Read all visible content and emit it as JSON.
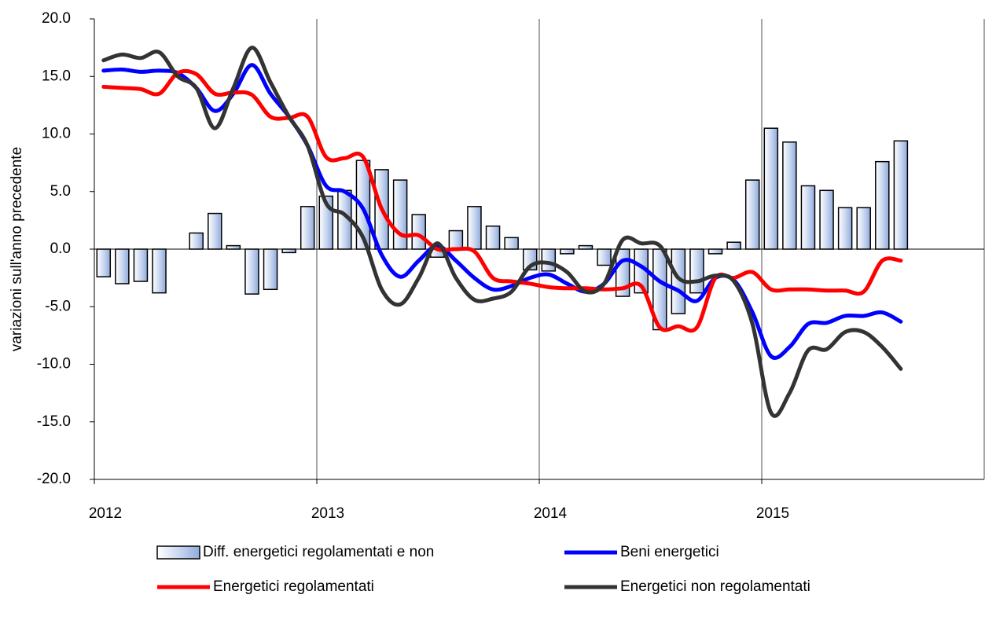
{
  "chart_data": {
    "type": "bar+line",
    "y_label": "variazioni sull'anno precedente",
    "categories": [
      "2012",
      null,
      null,
      null,
      null,
      null,
      null,
      null,
      null,
      null,
      null,
      null,
      "2013",
      null,
      null,
      null,
      null,
      null,
      null,
      null,
      null,
      null,
      null,
      null,
      "2014",
      null,
      null,
      null,
      null,
      null,
      null,
      null,
      null,
      null,
      null,
      null,
      "2015",
      null,
      null,
      null,
      null,
      null,
      null,
      null
    ],
    "ylim": [
      -20,
      20
    ],
    "yticks": [
      {
        "value": -20,
        "label": "-20.0"
      },
      {
        "value": -15,
        "label": "-15.0"
      },
      {
        "value": -10,
        "label": "-10.0"
      },
      {
        "value": -5,
        "label": "-5.0"
      },
      {
        "value": 0,
        "label": "0.0"
      },
      {
        "value": 5,
        "label": "5.0"
      },
      {
        "value": 10,
        "label": "10.0"
      },
      {
        "value": 15,
        "label": "15.0"
      },
      {
        "value": 20,
        "label": "20.0"
      }
    ],
    "grid": true,
    "legend": "bottom",
    "series": [
      {
        "name": "Diff. energetici regolamentati e non",
        "type": "bar",
        "color": "#8faadc",
        "values": [
          -2.4,
          -3.0,
          -2.8,
          -3.8,
          0,
          1.4,
          3.1,
          0.3,
          -3.9,
          -3.5,
          -0.3,
          3.7,
          4.6,
          5.1,
          7.7,
          6.9,
          6.0,
          3.0,
          -0.7,
          1.6,
          3.7,
          2.0,
          1.0,
          -1.8,
          -1.9,
          -0.4,
          0.3,
          -1.4,
          -4.1,
          -3.8,
          -7.0,
          -5.6,
          -3.8,
          -0.4,
          0.6,
          6.0,
          10.5,
          9.3,
          5.5,
          5.1,
          3.6,
          3.6,
          7.6,
          9.4
        ]
      },
      {
        "name": "Beni energetici",
        "type": "line",
        "color": "#0000ff",
        "values": [
          15.5,
          15.6,
          15.4,
          15.5,
          15.3,
          14.0,
          12.0,
          13.5,
          16.0,
          13.5,
          11.5,
          9.0,
          5.5,
          5.0,
          3.5,
          -0.5,
          -2.4,
          -1.0,
          0.3,
          -1.0,
          -2.5,
          -3.5,
          -3.2,
          -2.5,
          -2.2,
          -3.0,
          -3.7,
          -3.0,
          -1.0,
          -1.5,
          -2.8,
          -3.6,
          -4.5,
          -2.5,
          -2.7,
          -5.5,
          -9.3,
          -8.5,
          -6.5,
          -6.4,
          -5.8,
          -5.8,
          -5.5,
          -6.3
        ]
      },
      {
        "name": "Energetici regolamentati",
        "type": "line",
        "color": "#ff0000",
        "values": [
          14.1,
          14.0,
          13.9,
          13.5,
          15.3,
          15.2,
          13.5,
          13.6,
          13.4,
          11.5,
          11.4,
          11.5,
          8.0,
          7.9,
          8.0,
          3.5,
          1.3,
          1.2,
          0.0,
          0.0,
          -0.2,
          -2.5,
          -2.8,
          -3.0,
          -3.3,
          -3.4,
          -3.4,
          -3.5,
          -3.4,
          -3.2,
          -6.8,
          -6.7,
          -6.8,
          -2.5,
          -2.5,
          -2.0,
          -3.5,
          -3.5,
          -3.5,
          -3.6,
          -3.6,
          -3.7,
          -1.0,
          -1.0
        ]
      },
      {
        "name": "Energetici non regolamentati",
        "type": "line",
        "color": "#333333",
        "values": [
          16.4,
          16.9,
          16.6,
          17.1,
          15.0,
          14.0,
          10.5,
          14.0,
          17.5,
          14.5,
          11.5,
          9.0,
          4.0,
          3.0,
          1.0,
          -3.5,
          -4.8,
          -2.5,
          0.5,
          -2.5,
          -4.4,
          -4.3,
          -3.7,
          -1.5,
          -1.2,
          -2.0,
          -3.7,
          -3.0,
          0.8,
          0.5,
          0.3,
          -2.5,
          -2.8,
          -2.3,
          -2.8,
          -6.5,
          -14.2,
          -12.5,
          -8.8,
          -8.7,
          -7.2,
          -7.2,
          -8.5,
          -10.4
        ]
      }
    ]
  }
}
